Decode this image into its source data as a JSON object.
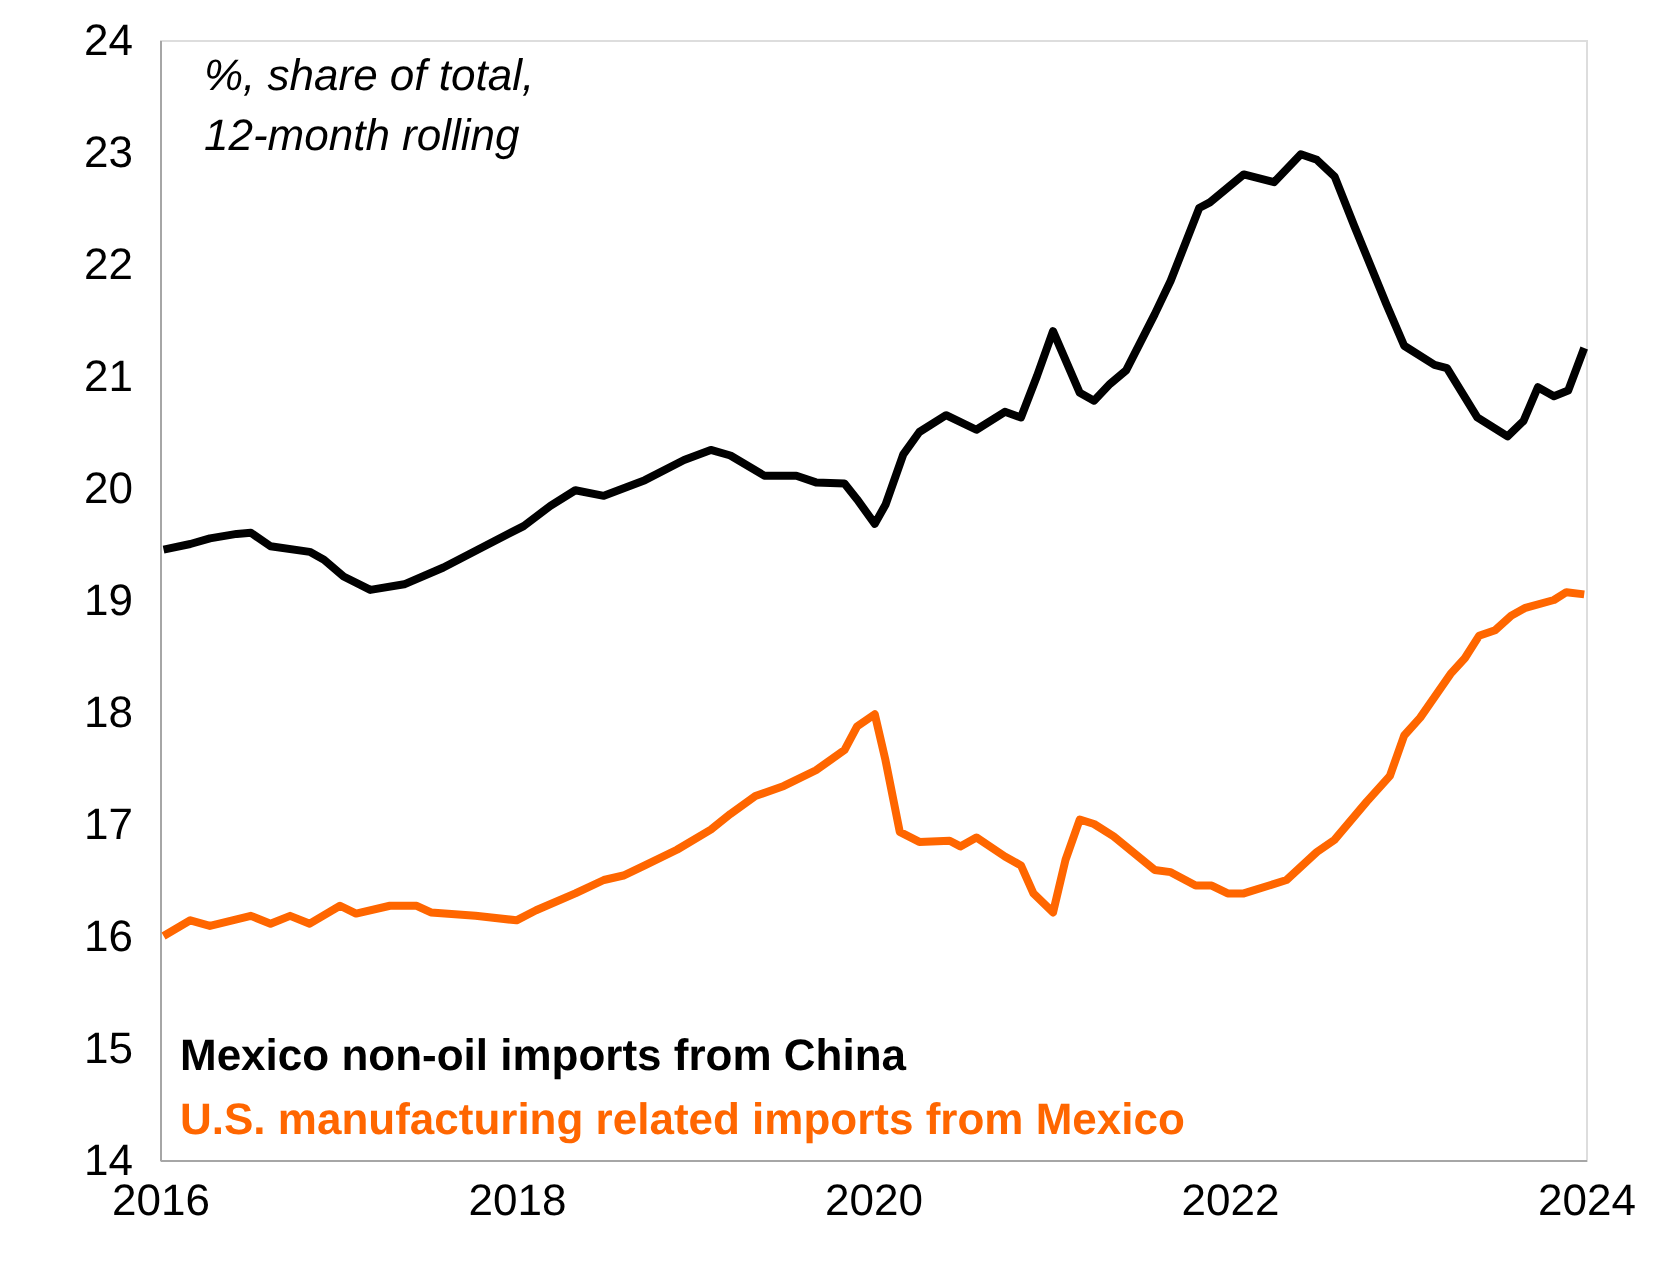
{
  "chart_data": {
    "type": "line",
    "annotations": [
      "%, share of total,",
      "12-month rolling"
    ],
    "xlim": [
      2016,
      2024
    ],
    "xticks": [
      2016,
      2018,
      2020,
      2022,
      2024
    ],
    "ylim": [
      14,
      24
    ],
    "yticks": [
      14,
      15,
      16,
      17,
      18,
      19,
      20,
      21,
      22,
      23,
      24
    ],
    "grid": false,
    "legend": "bottom left",
    "line_style": "solid",
    "marker": "none",
    "series": [
      {
        "name": "Mexico non-oil imports from China",
        "color": "#000000",
        "x": [
          2016.02,
          2016.17,
          2016.28,
          2016.43,
          2016.51,
          2016.62,
          2016.84,
          2016.92,
          2017.03,
          2017.18,
          2017.37,
          2017.59,
          2017.82,
          2018.04,
          2018.19,
          2018.33,
          2018.49,
          2018.72,
          2018.94,
          2019.09,
          2019.2,
          2019.39,
          2019.57,
          2019.68,
          2019.84,
          2019.91,
          2020.01,
          2020.07,
          2020.17,
          2020.26,
          2020.41,
          2020.58,
          2020.74,
          2020.83,
          2020.92,
          2021.01,
          2021.16,
          2021.24,
          2021.33,
          2021.42,
          2021.58,
          2021.67,
          2021.83,
          2021.89,
          2022.08,
          2022.25,
          2022.4,
          2022.49,
          2022.59,
          2022.7,
          2022.88,
          2022.98,
          2023.15,
          2023.22,
          2023.39,
          2023.56,
          2023.65,
          2023.73,
          2023.82,
          2023.9,
          2023.99
        ],
        "values": [
          19.45,
          19.5,
          19.55,
          19.59,
          19.6,
          19.48,
          19.43,
          19.36,
          19.21,
          19.09,
          19.14,
          19.29,
          19.48,
          19.66,
          19.84,
          19.98,
          19.93,
          20.07,
          20.25,
          20.34,
          20.29,
          20.11,
          20.11,
          20.05,
          20.04,
          19.9,
          19.68,
          19.85,
          20.3,
          20.5,
          20.65,
          20.52,
          20.68,
          20.63,
          21.0,
          21.4,
          20.85,
          20.78,
          20.93,
          21.05,
          21.55,
          21.85,
          22.5,
          22.55,
          22.8,
          22.73,
          22.98,
          22.93,
          22.78,
          22.34,
          21.64,
          21.27,
          21.1,
          21.07,
          20.63,
          20.46,
          20.6,
          20.9,
          20.82,
          20.87,
          21.25
        ]
      },
      {
        "name": "U.S. manufacturing related imports from Mexico",
        "color": "#ff6600",
        "x": [
          2016.02,
          2016.17,
          2016.28,
          2016.51,
          2016.62,
          2016.73,
          2016.84,
          2017.01,
          2017.1,
          2017.29,
          2017.44,
          2017.52,
          2017.77,
          2018.0,
          2018.11,
          2018.33,
          2018.49,
          2018.6,
          2018.72,
          2018.9,
          2019.09,
          2019.2,
          2019.34,
          2019.5,
          2019.68,
          2019.84,
          2019.91,
          2020.01,
          2020.07,
          2020.15,
          2020.26,
          2020.43,
          2020.49,
          2020.58,
          2020.74,
          2020.83,
          2020.9,
          2021.01,
          2021.08,
          2021.16,
          2021.24,
          2021.35,
          2021.58,
          2021.67,
          2021.81,
          2021.9,
          2021.99,
          2022.08,
          2022.32,
          2022.49,
          2022.59,
          2022.77,
          2022.9,
          2022.98,
          2023.07,
          2023.24,
          2023.32,
          2023.4,
          2023.49,
          2023.58,
          2023.66,
          2023.82,
          2023.89,
          2023.99
        ],
        "values": [
          16.0,
          16.14,
          16.09,
          16.18,
          16.11,
          16.18,
          16.11,
          16.27,
          16.2,
          16.27,
          16.27,
          16.21,
          16.18,
          16.14,
          16.23,
          16.38,
          16.5,
          16.54,
          16.63,
          16.77,
          16.95,
          17.09,
          17.25,
          17.34,
          17.48,
          17.66,
          17.87,
          17.98,
          17.57,
          16.93,
          16.84,
          16.85,
          16.8,
          16.88,
          16.71,
          16.63,
          16.38,
          16.21,
          16.68,
          17.04,
          17.0,
          16.89,
          16.59,
          16.57,
          16.45,
          16.45,
          16.38,
          16.38,
          16.5,
          16.75,
          16.86,
          17.2,
          17.43,
          17.79,
          17.95,
          18.34,
          18.48,
          18.68,
          18.73,
          18.86,
          18.93,
          19.0,
          19.07,
          19.05
        ]
      }
    ]
  }
}
